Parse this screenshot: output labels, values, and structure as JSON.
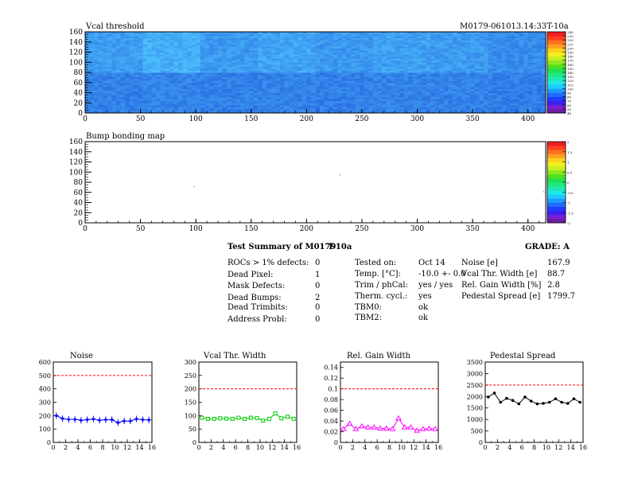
{
  "page": {
    "background": "#ffffff"
  },
  "heatmaps": [
    {
      "title": "Vcal threshold",
      "module_label": "M0179-061013.14:33T-10a",
      "x_ticks": [
        "0",
        "50",
        "100",
        "150",
        "200",
        "250",
        "300",
        "350",
        "400"
      ],
      "y_ticks": [
        "0",
        "20",
        "40",
        "60",
        "80",
        "100",
        "120",
        "140",
        "160"
      ],
      "palette_labels": [
        "40",
        "50",
        "60",
        "70",
        "80",
        "90",
        "100",
        "110",
        "120",
        "130",
        "140",
        "150",
        "160",
        "170",
        "180",
        "190",
        "200",
        "210",
        "220",
        "230",
        "240"
      ]
    },
    {
      "title": "Bump bonding map",
      "x_ticks": [
        "0",
        "50",
        "100",
        "150",
        "200",
        "250",
        "300",
        "350",
        "400"
      ],
      "y_ticks": [
        "0",
        "20",
        "40",
        "60",
        "80",
        "100",
        "120",
        "140",
        "160"
      ],
      "palette_labels": [
        "-2",
        "-1.5",
        "-1",
        "-0.5",
        "0",
        "0.5",
        "1",
        "1.5",
        "2"
      ]
    }
  ],
  "summary": {
    "title": "Test Summary of M0179",
    "temp_tag": "T-10a",
    "grade": "GRADE:  A",
    "defects": [
      {
        "label": "ROCs > 1% defects:",
        "value": "0"
      },
      {
        "label": "Dead Pixel:",
        "value": "1"
      },
      {
        "label": "Mask Defects:",
        "value": "0"
      },
      {
        "label": "Dead Bumps:",
        "value": "2"
      },
      {
        "label": "Dead Trimbits:",
        "value": "0"
      },
      {
        "label": "Address Probl:",
        "value": "0"
      }
    ],
    "conditions": [
      {
        "label": "Tested on:",
        "value": "Oct 14"
      },
      {
        "label": "Temp. [°C]:",
        "value": "-10.0 +- 0.0"
      },
      {
        "label": "Trim / phCal:",
        "value": "yes / yes"
      },
      {
        "label": "Therm. cycl.:",
        "value": "yes"
      },
      {
        "label": "TBM0:",
        "value": "ok"
      },
      {
        "label": "TBM2:",
        "value": "ok"
      }
    ],
    "results": [
      {
        "label": "Noise [e]",
        "value": "167.9"
      },
      {
        "label": "Vcal Thr. Width [e]",
        "value": "88.7"
      },
      {
        "label": "Rel. Gain Width [%]",
        "value": "2.8"
      },
      {
        "label": "Pedestal Spread [e]",
        "value": "1799.7"
      }
    ]
  },
  "chart_data": [
    {
      "type": "heatmap",
      "title": "Vcal threshold",
      "x_range": [
        0,
        416
      ],
      "y_range": [
        0,
        160
      ],
      "z_range": [
        40,
        240
      ],
      "roc_columns": 8,
      "roc_rows": 2,
      "roc_mean_levels": [
        [
          110,
          112,
          110,
          111,
          109,
          111,
          110,
          108
        ],
        [
          128,
          140,
          126,
          132,
          124,
          130,
          127,
          118
        ]
      ]
    },
    {
      "type": "heatmap",
      "title": "Bump bonding map",
      "x_range": [
        0,
        416
      ],
      "y_range": [
        0,
        160
      ],
      "z_range": [
        -2,
        2
      ]
    },
    {
      "type": "line",
      "title": "Noise",
      "color": "#0000ff",
      "marker": "star",
      "x": [
        0,
        1,
        2,
        3,
        4,
        5,
        6,
        7,
        8,
        9,
        10,
        11,
        12,
        13,
        14,
        15
      ],
      "y": [
        200,
        178,
        172,
        172,
        165,
        170,
        175,
        165,
        170,
        170,
        148,
        160,
        160,
        175,
        170,
        168
      ],
      "xlim": [
        0,
        16
      ],
      "ylim": [
        0,
        600
      ],
      "x_ticks": [
        0,
        2,
        4,
        6,
        8,
        10,
        12,
        14,
        16
      ],
      "y_ticks": [
        0,
        100,
        200,
        300,
        400,
        500,
        600
      ],
      "limit_line": 500
    },
    {
      "type": "line",
      "title": "Vcal Thr. Width",
      "color": "#00cc00",
      "marker": "square",
      "x": [
        0,
        1,
        2,
        3,
        4,
        5,
        6,
        7,
        8,
        9,
        10,
        11,
        12,
        13,
        14,
        15
      ],
      "y": [
        92,
        88,
        88,
        90,
        89,
        88,
        92,
        88,
        92,
        91,
        82,
        88,
        108,
        90,
        96,
        88
      ],
      "xlim": [
        0,
        16
      ],
      "ylim": [
        0,
        300
      ],
      "x_ticks": [
        0,
        2,
        4,
        6,
        8,
        10,
        12,
        14,
        16
      ],
      "y_ticks": [
        0,
        50,
        100,
        150,
        200,
        250,
        300
      ],
      "limit_line": 200
    },
    {
      "type": "line",
      "title": "Rel. Gain Width",
      "color": "#ff00ff",
      "marker": "triangle",
      "x": [
        0,
        1,
        2,
        3,
        4,
        5,
        6,
        7,
        8,
        9,
        10,
        11,
        12,
        13,
        14,
        15
      ],
      "y": [
        0.025,
        0.035,
        0.025,
        0.03,
        0.028,
        0.028,
        0.026,
        0.026,
        0.025,
        0.045,
        0.028,
        0.028,
        0.022,
        0.025,
        0.026,
        0.025
      ],
      "xlim": [
        0,
        16
      ],
      "ylim": [
        0,
        0.15
      ],
      "x_ticks": [
        0,
        2,
        4,
        6,
        8,
        10,
        12,
        14,
        16
      ],
      "y_ticks": [
        0,
        0.02,
        0.04,
        0.06,
        0.08,
        0.1,
        0.12,
        0.14
      ],
      "limit_line": 0.1
    },
    {
      "type": "line",
      "title": "Pedestal Spread",
      "color": "#000000",
      "marker": "dot",
      "x": [
        0,
        1,
        2,
        3,
        4,
        5,
        6,
        7,
        8,
        9,
        10,
        11,
        12,
        13,
        14,
        15
      ],
      "y": [
        1980,
        2150,
        1750,
        1920,
        1830,
        1680,
        1980,
        1800,
        1680,
        1700,
        1750,
        1900,
        1750,
        1700,
        1900,
        1750
      ],
      "xlim": [
        0,
        16
      ],
      "ylim": [
        0,
        3500
      ],
      "x_ticks": [
        0,
        2,
        4,
        6,
        8,
        10,
        12,
        14,
        16
      ],
      "y_ticks": [
        0,
        500,
        1000,
        1500,
        2000,
        2500,
        3000,
        3500
      ],
      "limit_line": 2500
    }
  ]
}
